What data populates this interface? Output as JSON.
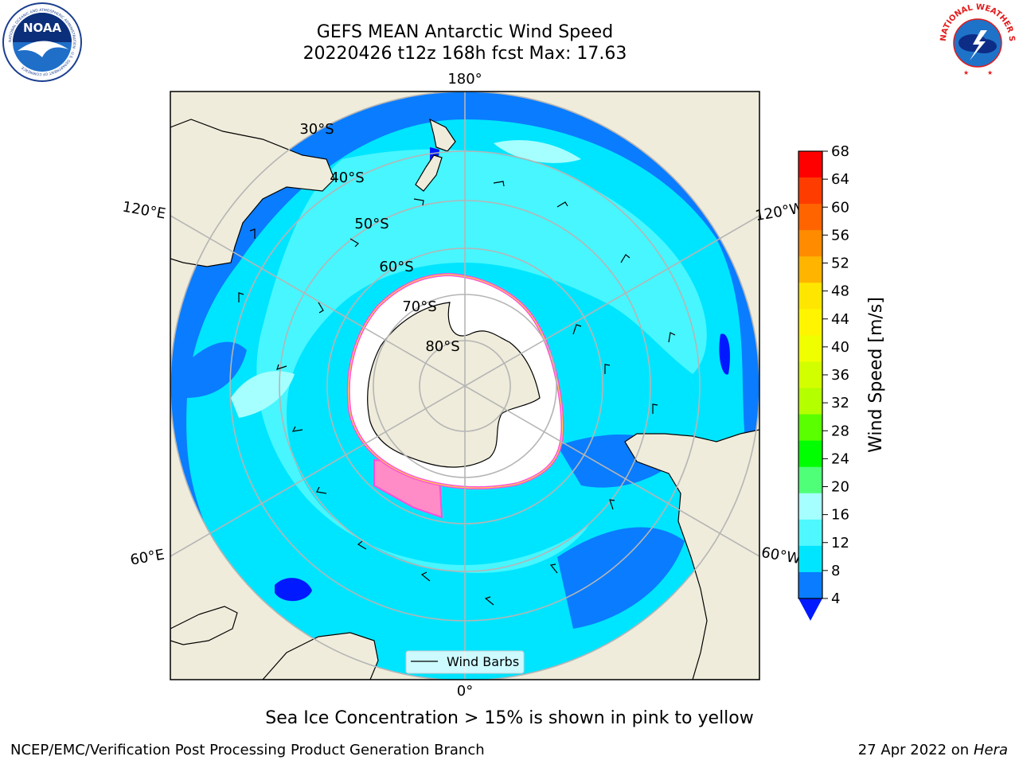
{
  "header": {
    "title_line1": "GEFS MEAN Antarctic Wind Speed",
    "title_line2": "20220426 t12z 168h fcst   Max: 17.63"
  },
  "logos": {
    "left": {
      "name": "noaa-logo",
      "text": "NOAA",
      "ring_text": "NATIONAL OCEANIC AND ATMOSPHERIC ADMINISTRATION · U.S. DEPARTMENT OF COMMERCE"
    },
    "right": {
      "name": "nws-logo",
      "ring_text": "NATIONAL WEATHER SERVICE"
    }
  },
  "map": {
    "longitude_labels": [
      "180°",
      "0°",
      "120°E",
      "120°W",
      "60°E",
      "60°W"
    ],
    "latitude_labels": [
      "30°S",
      "40°S",
      "50°S",
      "60°S",
      "70°S",
      "80°S"
    ],
    "legend": {
      "label": "Wind Barbs"
    },
    "colors": {
      "land": "#efecdb",
      "ice_sheet": "#ffffff",
      "wind_4_8": "#0a7cff",
      "wind_8_12": "#00e5ff",
      "wind_12_16": "#4ff7ff",
      "wind_16_20": "#a6ffff",
      "sea_ice_edge": "#ff4fd8",
      "sea_ice_fill": "#ff8cc6"
    }
  },
  "colorbar": {
    "label": "Wind Speed [m/s]",
    "ticks": [
      "68",
      "64",
      "60",
      "56",
      "52",
      "48",
      "44",
      "40",
      "36",
      "32",
      "28",
      "24",
      "20",
      "16",
      "12",
      "8",
      "4"
    ],
    "colors": [
      "#ff0000",
      "#ff3c00",
      "#ff6400",
      "#ff8c00",
      "#ffb400",
      "#ffe600",
      "#fff500",
      "#f0ff00",
      "#d2ff00",
      "#b4ff00",
      "#5aff00",
      "#00ff00",
      "#50ff78",
      "#a6ffff",
      "#4ff7ff",
      "#00e5ff",
      "#0a7cff"
    ],
    "under_color": "#0019ff"
  },
  "caption": "Sea Ice Concentration > 15% is shown in pink to yellow",
  "footer": {
    "left": "NCEP/EMC/Verification Post Processing Product Generation Branch",
    "right_prefix": "27 Apr 2022 on ",
    "right_machine": "Hera"
  }
}
